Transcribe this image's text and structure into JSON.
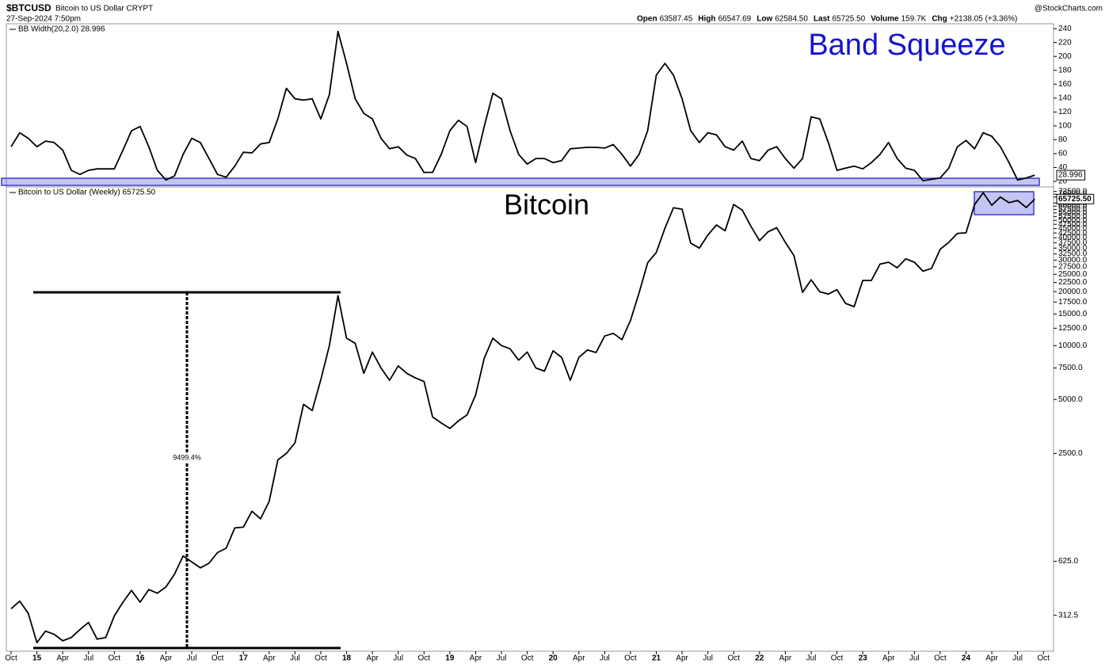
{
  "header": {
    "symbol": "$BTCUSD",
    "description": "Bitcoin to US Dollar CRYPT",
    "timestamp": "27-Sep-2024 7:50pm",
    "credit": "@StockCharts.com",
    "quote": [
      {
        "label": "Open",
        "value": "63587.45"
      },
      {
        "label": "High",
        "value": "66547.69"
      },
      {
        "label": "Low",
        "value": "62584.50"
      },
      {
        "label": "Last",
        "value": "65725.50"
      },
      {
        "label": "Volume",
        "value": "159.7K"
      },
      {
        "label": "Chg",
        "value": "+2138.05 (+3.36%)"
      }
    ]
  },
  "chart_data": [
    {
      "type": "line",
      "legend": "BB Width(20,2.0) 28.996",
      "annotation": "Band Squeeze",
      "last_label": "28.996",
      "color": "#000000",
      "ylim": [
        12,
        247
      ],
      "yticks": [
        20,
        40,
        60,
        80,
        100,
        120,
        140,
        160,
        180,
        200,
        220,
        240
      ],
      "values": [
        70,
        90,
        82,
        70,
        78,
        76,
        65,
        36,
        30,
        36,
        38,
        38,
        38,
        65,
        93,
        99,
        70,
        36,
        22,
        28,
        59,
        82,
        76,
        53,
        30,
        26,
        42,
        62,
        61,
        74,
        76,
        110,
        154,
        139,
        137,
        139,
        110,
        145,
        236,
        190,
        139,
        118,
        110,
        82,
        67,
        70,
        58,
        53,
        33,
        33,
        59,
        93,
        108,
        99,
        47,
        99,
        147,
        139,
        93,
        59,
        45,
        53,
        53,
        47,
        50,
        67,
        68,
        69,
        69,
        68,
        73,
        59,
        42,
        59,
        93,
        173,
        190,
        173,
        139,
        93,
        76,
        90,
        87,
        70,
        65,
        78,
        53,
        50,
        65,
        70,
        53,
        39,
        53,
        113,
        110,
        76,
        36,
        39,
        42,
        38,
        47,
        59,
        76,
        53,
        39,
        36,
        21,
        23,
        25,
        39,
        70,
        79,
        67,
        90,
        85,
        70,
        47,
        22,
        25,
        28.996,
        null
      ]
    },
    {
      "type": "line",
      "legend": "Bitcoin to US Dollar (Weekly) 65725.50",
      "annotation": "Bitcoin",
      "measure_label": "9499.4%",
      "last_label": "65725.50",
      "color": "#000000",
      "log": true,
      "ylim": [
        197,
        76800
      ],
      "yticks": [
        312.5,
        {
          "value": 625,
          "label": "625.0"
        },
        {
          "value": 2500,
          "label": "2500.0"
        },
        {
          "value": 5000,
          "label": "5000.0"
        },
        {
          "value": 7500,
          "label": "7500.0"
        },
        {
          "value": 10000,
          "label": "10000.0"
        },
        {
          "value": 12500,
          "label": "12500.0"
        },
        {
          "value": 15000,
          "label": "15000.0"
        },
        {
          "value": 17500,
          "label": "17500.0"
        },
        {
          "value": 20000,
          "label": "20000.0"
        },
        {
          "value": 22500,
          "label": "22500.0"
        },
        {
          "value": 25000,
          "label": "25000.0"
        },
        {
          "value": 27500,
          "label": "27500.0"
        },
        {
          "value": 30000,
          "label": "30000.0"
        },
        {
          "value": 32500,
          "label": "32500.0"
        },
        {
          "value": 35000,
          "label": "35000.0"
        },
        {
          "value": 37500,
          "label": "37500.0"
        },
        {
          "value": 40000,
          "label": "40000.0"
        },
        {
          "value": 42500,
          "label": "42500.0"
        },
        {
          "value": 45000,
          "label": "45000.0"
        },
        {
          "value": 47500,
          "label": "47500.0"
        },
        {
          "value": 50000,
          "label": "50000.0"
        },
        {
          "value": 52500,
          "label": "52500.0"
        },
        {
          "value": 55000,
          "label": "55000.0"
        },
        {
          "value": 57500,
          "label": "57500.0"
        },
        {
          "value": 60000,
          "label": "60000.0"
        },
        {
          "value": 62500,
          "label": "62500.0"
        },
        {
          "value": 67500,
          "label": "67500.0"
        },
        {
          "value": 70000,
          "label": "70000.0"
        },
        {
          "value": 72500,
          "label": "72500.0"
        }
      ],
      "categories": [
        "Oct",
        null,
        null,
        "15",
        null,
        null,
        "Apr",
        null,
        null,
        "Jul",
        null,
        null,
        "Oct",
        null,
        null,
        "16",
        null,
        null,
        "Apr",
        null,
        null,
        "Jul",
        null,
        null,
        "Oct",
        null,
        null,
        "17",
        null,
        null,
        "Apr",
        null,
        null,
        "Jul",
        null,
        null,
        "Oct",
        null,
        null,
        "18",
        null,
        null,
        "Apr",
        null,
        null,
        "Jul",
        null,
        null,
        "Oct",
        null,
        null,
        "19",
        null,
        null,
        "Apr",
        null,
        null,
        "Jul",
        null,
        null,
        "Oct",
        null,
        null,
        "20",
        null,
        null,
        "Apr",
        null,
        null,
        "Jul",
        null,
        null,
        "Oct",
        null,
        null,
        "21",
        null,
        null,
        "Apr",
        null,
        null,
        "Jul",
        null,
        null,
        "Oct",
        null,
        null,
        "22",
        null,
        null,
        "Apr",
        null,
        null,
        "Jul",
        null,
        null,
        "Oct",
        null,
        null,
        "23",
        null,
        null,
        "Apr",
        null,
        null,
        "Jul",
        null,
        null,
        "Oct",
        null,
        null,
        "24",
        null,
        null,
        "Apr",
        null,
        null,
        "Jul",
        null,
        null,
        "Oct"
      ],
      "values": [
        340,
        375,
        320,
        220,
        255,
        245,
        225,
        235,
        260,
        285,
        230,
        235,
        310,
        370,
        430,
        370,
        435,
        415,
        450,
        530,
        670,
        620,
        575,
        610,
        700,
        740,
        960,
        970,
        1190,
        1080,
        1350,
        2300,
        2500,
        2870,
        4700,
        4340,
        6450,
        10000,
        19000,
        11000,
        10300,
        7000,
        9200,
        7500,
        6400,
        7700,
        7000,
        6600,
        6300,
        4000,
        3700,
        3450,
        3800,
        4100,
        5300,
        8500,
        11000,
        10000,
        9600,
        8300,
        9200,
        7500,
        7200,
        9350,
        8600,
        6400,
        8600,
        9450,
        9150,
        11300,
        11700,
        10800,
        13800,
        19700,
        29000,
        33100,
        45200,
        58800,
        57700,
        37300,
        35000,
        41500,
        47100,
        43800,
        61300,
        57000,
        46300,
        38500,
        43200,
        45500,
        37700,
        31800,
        19800,
        23300,
        20000,
        19400,
        20500,
        17200,
        16500,
        23100,
        23100,
        28500,
        29200,
        27200,
        30500,
        29200,
        26000,
        27000,
        34500,
        37700,
        42300,
        42600,
        61200,
        71300,
        60700,
        67500,
        62700,
        64600,
        59000,
        65725.5,
        null
      ]
    }
  ]
}
